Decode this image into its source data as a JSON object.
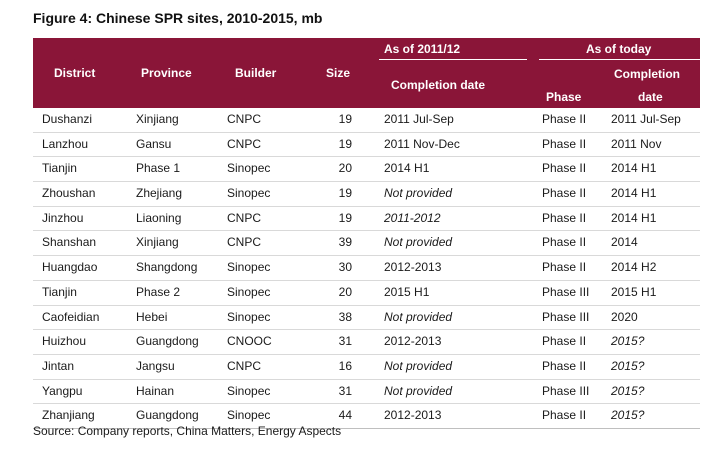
{
  "title": "Figure 4: Chinese SPR sites, 2010-2015, mb",
  "header": {
    "group1": "As of 2011/12",
    "group2": "As of today",
    "district": "District",
    "province": "Province",
    "builder": "Builder",
    "size": "Size",
    "completion_date_1": "Completion date",
    "phase": "Phase",
    "completion_2_line1": "Completion",
    "completion_2_line2": "date"
  },
  "rows": [
    {
      "district": "Dushanzi",
      "province": "Xinjiang",
      "builder": "CNPC",
      "size": "19",
      "completion_2011": "2011 Jul-Sep",
      "phase": "Phase II",
      "completion_today": "2011 Jul-Sep"
    },
    {
      "district": "Lanzhou",
      "province": "Gansu",
      "builder": "CNPC",
      "size": "19",
      "completion_2011": "2011 Nov-Dec",
      "phase": "Phase II",
      "completion_today": "2011 Nov"
    },
    {
      "district": "Tianjin",
      "province": "Phase 1",
      "builder": "Sinopec",
      "size": "20",
      "completion_2011": "2014 H1",
      "phase": "Phase II",
      "completion_today": "2014 H1"
    },
    {
      "district": "Zhoushan",
      "province": "Zhejiang",
      "builder": "Sinopec",
      "size": "19",
      "completion_2011": "Not provided",
      "phase": "Phase II",
      "completion_today": "2014 H1"
    },
    {
      "district": "Jinzhou",
      "province": "Liaoning",
      "builder": "CNPC",
      "size": "19",
      "completion_2011": "2011-2012",
      "phase": "Phase II",
      "completion_today": "2014 H1"
    },
    {
      "district": "Shanshan",
      "province": "Xinjiang",
      "builder": "CNPC",
      "size": "39",
      "completion_2011": "Not provided",
      "phase": "Phase II",
      "completion_today": "2014"
    },
    {
      "district": "Huangdao",
      "province": "Shangdong",
      "builder": "Sinopec",
      "size": "30",
      "completion_2011": "2012-2013",
      "phase": "Phase II",
      "completion_today": "2014 H2"
    },
    {
      "district": "Tianjin",
      "province": "Phase 2",
      "builder": "Sinopec",
      "size": "20",
      "completion_2011": "2015 H1",
      "phase": "Phase III",
      "completion_today": "2015 H1"
    },
    {
      "district": "Caofeidian",
      "province": "Hebei",
      "builder": "Sinopec",
      "size": "38",
      "completion_2011": "Not provided",
      "phase": "Phase III",
      "completion_today": "2020"
    },
    {
      "district": "Huizhou",
      "province": "Guangdong",
      "builder": "CNOOC",
      "size": "31",
      "completion_2011": "2012-2013",
      "phase": "Phase II",
      "completion_today": "2015?"
    },
    {
      "district": "Jintan",
      "province": "Jangsu",
      "builder": "CNPC",
      "size": "16",
      "completion_2011": "Not provided",
      "phase": "Phase II",
      "completion_today": "2015?"
    },
    {
      "district": "Yangpu",
      "province": "Hainan",
      "builder": "Sinopec",
      "size": "31",
      "completion_2011": "Not provided",
      "phase": "Phase III",
      "completion_today": "2015?"
    },
    {
      "district": "Zhanjiang",
      "province": "Guangdong",
      "builder": "Sinopec",
      "size": "44",
      "completion_2011": "2012-2013",
      "phase": "Phase II",
      "completion_today": "2015?"
    }
  ],
  "source": "Source: Company reports, China Matters, Energy Aspects",
  "colors": {
    "header_bg": "#8a1538",
    "header_text": "#ffffff"
  }
}
